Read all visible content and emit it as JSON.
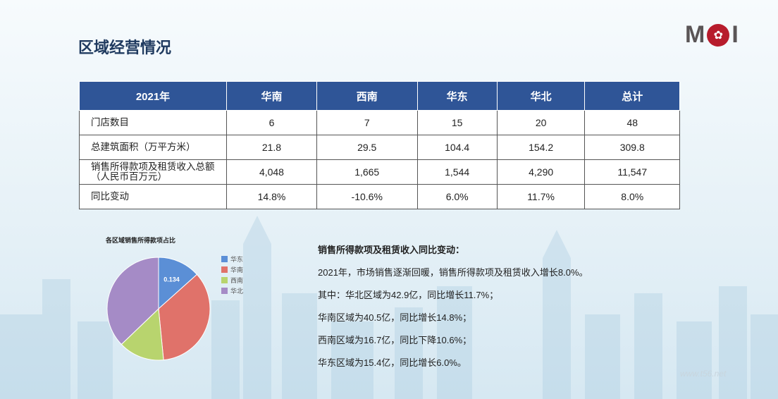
{
  "title": "区域经营情况",
  "logo_text": "MOI",
  "table": {
    "headers": [
      "2021年",
      "华南",
      "西南",
      "华东",
      "华北",
      "总计"
    ],
    "rows": [
      {
        "label": "门店数目",
        "values": [
          "6",
          "7",
          "15",
          "20",
          "48"
        ]
      },
      {
        "label": "总建筑面积（万平方米）",
        "values": [
          "21.8",
          "29.5",
          "104.4",
          "154.2",
          "309.8"
        ]
      },
      {
        "label": "销售所得款项及租赁收入总额（人民币百万元）",
        "values": [
          "4,048",
          "1,665",
          "1,544",
          "4,290",
          "11,547"
        ]
      },
      {
        "label": "同比变动",
        "values": [
          "14.8%",
          "-10.6%",
          "6.0%",
          "11.7%",
          "8.0%"
        ]
      }
    ]
  },
  "chart_data": {
    "type": "pie",
    "title": "各区域销售所得款项占比",
    "labels": [
      "华东",
      "华南",
      "西南",
      "华北"
    ],
    "values": [
      0.134,
      0.351,
      0.144,
      0.372
    ],
    "colors": [
      "#5b8fd6",
      "#e0726a",
      "#b8d46e",
      "#a58bc6"
    ],
    "data_labels": [
      "0.134"
    ],
    "legend": "right"
  },
  "summary": {
    "heading": "销售所得款项及租赁收入同比变动：",
    "lines": [
      "2021年，市场销售逐渐回暖，销售所得款项及租赁收入增长8.0%。",
      "其中：华北区域为42.9亿，同比增长11.7%；",
      "华南区域为40.5亿，同比增长14.8%；",
      "西南区域为16.7亿，同比下降10.6%；",
      "华东区域为15.4亿，同比增长6.0%。"
    ]
  },
  "watermark": "www.t56.net"
}
